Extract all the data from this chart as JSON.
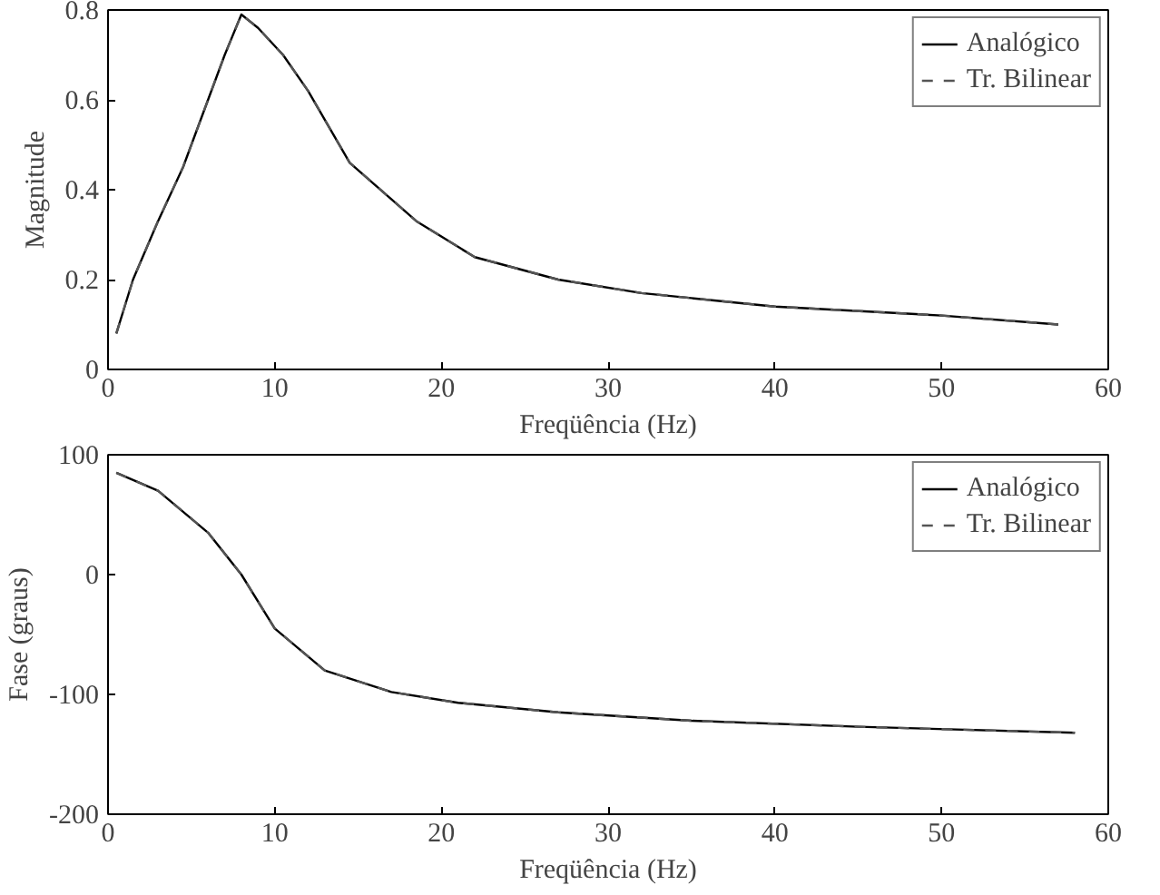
{
  "chart_data": [
    {
      "type": "line",
      "xlabel": "Freqüência (Hz)",
      "ylabel": "Magnitude",
      "xlim": [
        0,
        60
      ],
      "ylim": [
        0,
        0.8
      ],
      "xticks": [
        0,
        10,
        20,
        30,
        40,
        50,
        60
      ],
      "yticks": [
        0,
        0.2,
        0.4,
        0.6,
        0.8
      ],
      "grid": false,
      "legend": "top right",
      "series": [
        {
          "name": "Analógico",
          "color": "#000000",
          "line_style": "solid",
          "x": [
            0.5,
            1.5,
            3,
            4.5,
            6,
            7,
            8,
            9,
            10.5,
            12,
            14.5,
            18.5,
            22,
            27,
            32,
            40,
            50,
            57
          ],
          "values": [
            0.08,
            0.2,
            0.33,
            0.45,
            0.6,
            0.7,
            0.79,
            0.76,
            0.7,
            0.62,
            0.46,
            0.33,
            0.25,
            0.2,
            0.17,
            0.14,
            0.12,
            0.1
          ]
        },
        {
          "name": "Tr. Bilinear",
          "color": "#555555",
          "line_style": "dashed",
          "x": [
            0.5,
            1.5,
            3,
            4.5,
            6,
            7,
            8,
            9,
            10.5,
            12,
            14.5,
            18.5,
            22,
            27,
            32,
            40,
            50,
            57
          ],
          "values": [
            0.08,
            0.2,
            0.33,
            0.45,
            0.6,
            0.7,
            0.79,
            0.76,
            0.7,
            0.62,
            0.46,
            0.33,
            0.25,
            0.2,
            0.17,
            0.14,
            0.12,
            0.1
          ]
        }
      ]
    },
    {
      "type": "line",
      "xlabel": "Freqüência (Hz)",
      "ylabel": "Fase (graus)",
      "xlim": [
        0,
        60
      ],
      "ylim": [
        -200,
        100
      ],
      "xticks": [
        0,
        10,
        20,
        30,
        40,
        50,
        60
      ],
      "yticks": [
        -200,
        -100,
        0,
        100
      ],
      "grid": false,
      "legend": "top right",
      "series": [
        {
          "name": "Analógico",
          "color": "#000000",
          "line_style": "solid",
          "x": [
            0.5,
            3,
            6,
            8,
            10,
            13,
            17,
            21,
            27,
            35,
            45,
            58
          ],
          "values": [
            85,
            70,
            35,
            0,
            -45,
            -80,
            -98,
            -107,
            -115,
            -122,
            -127,
            -132
          ]
        },
        {
          "name": "Tr. Bilinear",
          "color": "#555555",
          "line_style": "dashed",
          "x": [
            0.5,
            3,
            6,
            8,
            10,
            13,
            17,
            21,
            27,
            35,
            45,
            58
          ],
          "values": [
            85,
            70,
            35,
            0,
            -45,
            -80,
            -98,
            -107,
            -115,
            -122,
            -127,
            -132
          ]
        }
      ]
    }
  ]
}
